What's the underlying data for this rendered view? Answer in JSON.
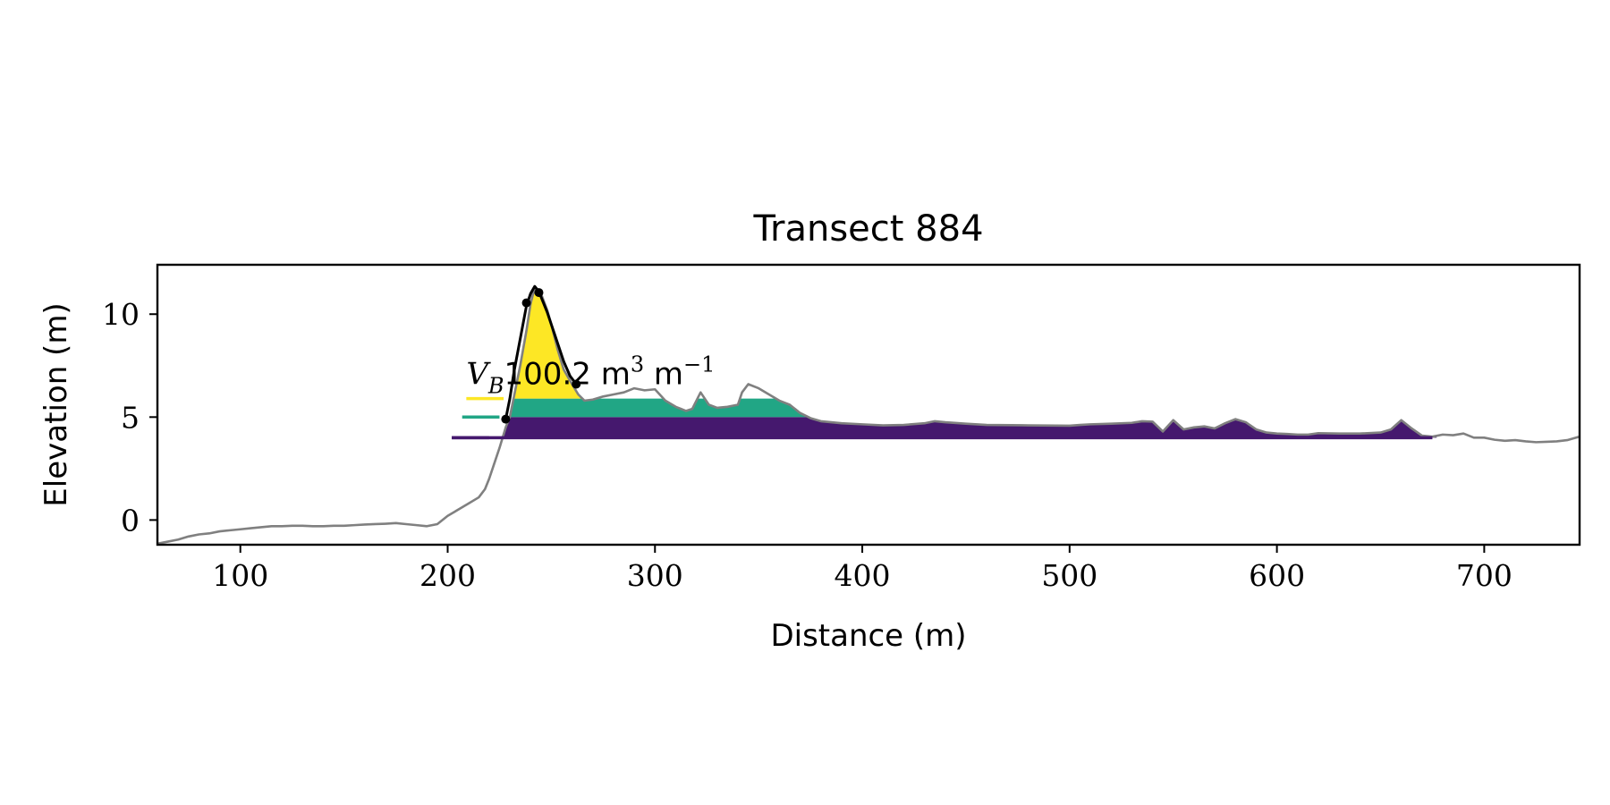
{
  "chart_data": {
    "type": "area",
    "title": "Transect 884",
    "xlabel": "Distance (m)",
    "ylabel": "Elevation (m)",
    "xlim": [
      60,
      746
    ],
    "ylim": [
      -1.2,
      12.4
    ],
    "xticks": [
      100,
      200,
      300,
      400,
      500,
      600,
      700
    ],
    "yticks": [
      0,
      5,
      10
    ],
    "grid": false,
    "annotation": {
      "math_label": "V",
      "math_subscript": "B",
      "text": "100.2 m",
      "exp1": "3",
      "unit2": " m",
      "exp2": "−1"
    },
    "profile": {
      "color": "#808080",
      "x": [
        60,
        65,
        70,
        75,
        80,
        85,
        90,
        95,
        100,
        105,
        110,
        115,
        120,
        125,
        130,
        135,
        140,
        145,
        150,
        155,
        160,
        165,
        170,
        175,
        180,
        185,
        190,
        195,
        200,
        205,
        210,
        215,
        218,
        220,
        222,
        225,
        228,
        230,
        232,
        235,
        238,
        240,
        242,
        245,
        248,
        250,
        253,
        256,
        260,
        263,
        266,
        270,
        275,
        280,
        285,
        290,
        295,
        300,
        305,
        310,
        315,
        318,
        322,
        326,
        330,
        335,
        340,
        342,
        345,
        350,
        355,
        360,
        365,
        370,
        375,
        380,
        385,
        390,
        400,
        410,
        420,
        430,
        435,
        440,
        450,
        460,
        480,
        500,
        505,
        510,
        520,
        530,
        535,
        540,
        545,
        550,
        555,
        560,
        565,
        570,
        575,
        580,
        585,
        590,
        595,
        600,
        605,
        610,
        615,
        620,
        630,
        640,
        650,
        655,
        660,
        665,
        670,
        675,
        680,
        685,
        690,
        695,
        700,
        705,
        710,
        715,
        720,
        725,
        730,
        735,
        740,
        746
      ],
      "y": [
        -1.15,
        -1.05,
        -0.95,
        -0.8,
        -0.7,
        -0.65,
        -0.55,
        -0.5,
        -0.45,
        -0.4,
        -0.35,
        -0.3,
        -0.3,
        -0.28,
        -0.28,
        -0.3,
        -0.3,
        -0.28,
        -0.28,
        -0.25,
        -0.22,
        -0.2,
        -0.18,
        -0.15,
        -0.2,
        -0.25,
        -0.3,
        -0.2,
        0.2,
        0.5,
        0.8,
        1.1,
        1.5,
        2.0,
        2.6,
        3.5,
        4.5,
        5.0,
        6.0,
        7.5,
        9.2,
        10.5,
        11.3,
        11.0,
        10.2,
        9.5,
        8.3,
        7.3,
        6.6,
        6.1,
        5.8,
        5.85,
        6.0,
        6.1,
        6.2,
        6.4,
        6.3,
        6.35,
        5.8,
        5.5,
        5.3,
        5.4,
        6.2,
        5.6,
        5.45,
        5.5,
        5.6,
        6.2,
        6.6,
        6.4,
        6.1,
        5.8,
        5.6,
        5.2,
        4.95,
        4.8,
        4.75,
        4.7,
        4.65,
        4.6,
        4.62,
        4.7,
        4.8,
        4.75,
        4.68,
        4.62,
        4.6,
        4.58,
        4.62,
        4.65,
        4.68,
        4.72,
        4.8,
        4.78,
        4.3,
        4.85,
        4.4,
        4.5,
        4.55,
        4.45,
        4.7,
        4.9,
        4.75,
        4.4,
        4.25,
        4.2,
        4.18,
        4.15,
        4.15,
        4.22,
        4.2,
        4.2,
        4.25,
        4.4,
        4.85,
        4.45,
        4.1,
        4.05,
        4.15,
        4.12,
        4.2,
        4.0,
        4.0,
        3.9,
        3.85,
        3.88,
        3.82,
        3.78,
        3.8,
        3.82,
        3.88,
        4.05
      ]
    },
    "layers": [
      {
        "level": 4.0,
        "color": "#45186e",
        "x_start": 202,
        "x_end": 675
      },
      {
        "level": 5.0,
        "color": "#21a685",
        "x_start": 207,
        "x_end": 380
      },
      {
        "level": 5.9,
        "color": "#fde725",
        "x_start": 209,
        "x_end": 265
      }
    ],
    "dune": {
      "color": "#000000",
      "x": [
        228,
        230,
        232,
        235,
        238,
        240,
        242,
        244,
        246,
        248,
        250,
        253,
        256,
        259,
        262
      ],
      "y": [
        4.9,
        5.9,
        7.2,
        8.8,
        10.4,
        11.0,
        11.35,
        11.1,
        10.6,
        10.1,
        9.5,
        8.6,
        7.7,
        7.0,
        6.6
      ],
      "points": [
        {
          "x": 228,
          "y": 4.9
        },
        {
          "x": 238,
          "y": 10.55
        },
        {
          "x": 244,
          "y": 11.05
        },
        {
          "x": 262,
          "y": 6.6
        }
      ]
    }
  }
}
